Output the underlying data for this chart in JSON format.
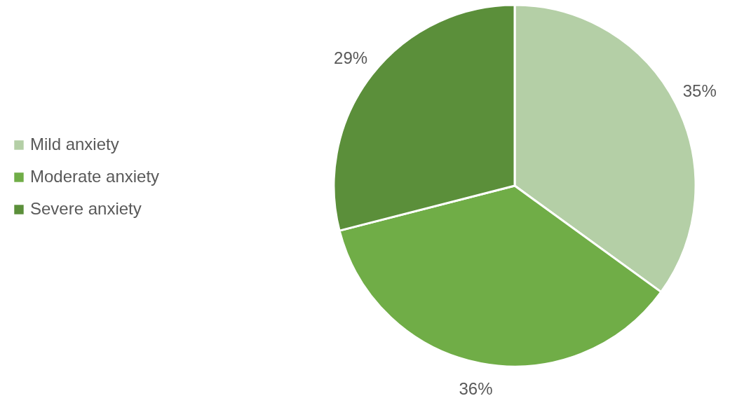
{
  "chart_data": {
    "type": "pie",
    "categories": [
      "Mild anxiety",
      "Moderate anxiety",
      "Severe anxiety"
    ],
    "values": [
      35,
      36,
      29
    ],
    "colors": [
      "#b4cfa6",
      "#70ad47",
      "#5b8f3a"
    ],
    "value_labels": [
      "35%",
      "36%",
      "29%"
    ],
    "legend": "left"
  }
}
